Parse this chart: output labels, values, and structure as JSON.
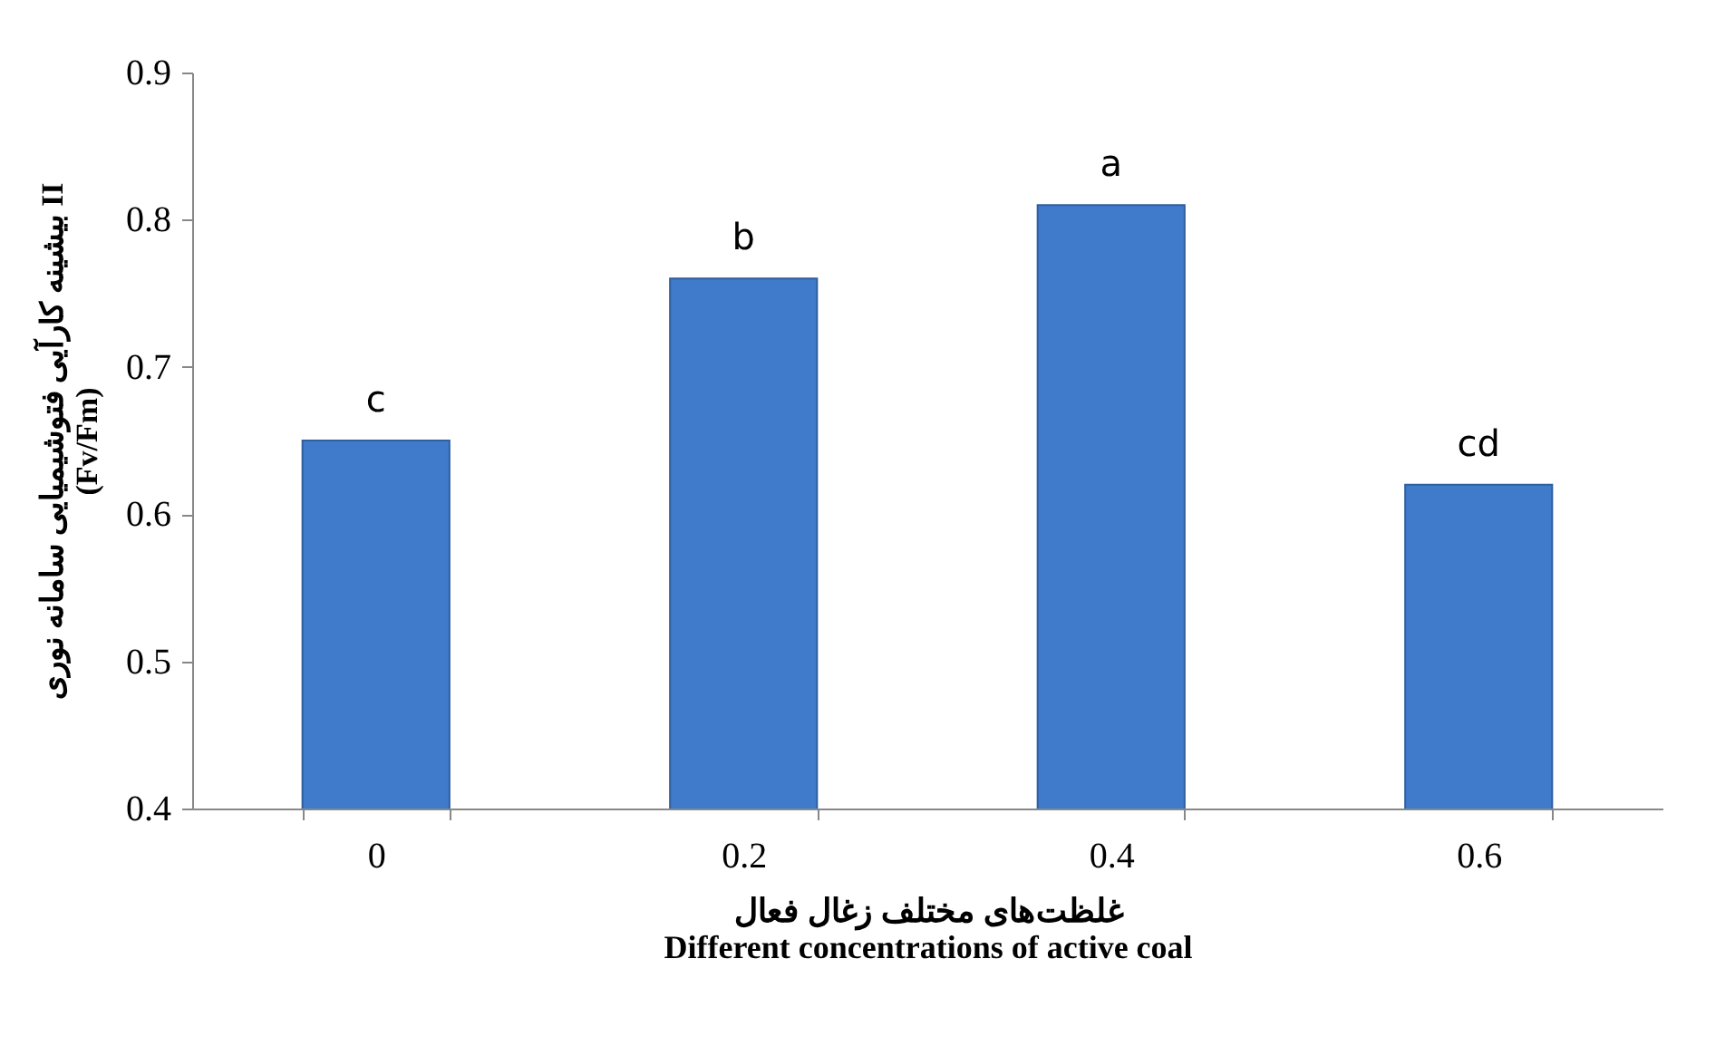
{
  "chart_data": {
    "type": "bar",
    "xlabel": "غلظت‌های مختلف زغال فعال\nDifferent concentrations of active coal",
    "ylabel": "بیشینه کارآیی فتوشیمیایی سامانه نوری II\n(Fv/Fm)",
    "categories": [
      "0",
      "0.2",
      "0.4",
      "0.6"
    ],
    "values": [
      0.65,
      0.76,
      0.81,
      0.62
    ],
    "color": "#3f7acb",
    "ylim": [
      0.4,
      0.9
    ],
    "yticks": [
      0.4,
      0.5,
      0.6,
      0.7,
      0.8,
      0.9
    ],
    "grid": false,
    "annotations": [
      {
        "text": "c",
        "x": "0",
        "y": 0.65
      },
      {
        "text": "b",
        "x": "0.2",
        "y": 0.76
      },
      {
        "text": "a",
        "x": "0.4",
        "y": 0.81
      },
      {
        "text": "cd",
        "x": "0.6",
        "y": 0.62
      }
    ]
  }
}
